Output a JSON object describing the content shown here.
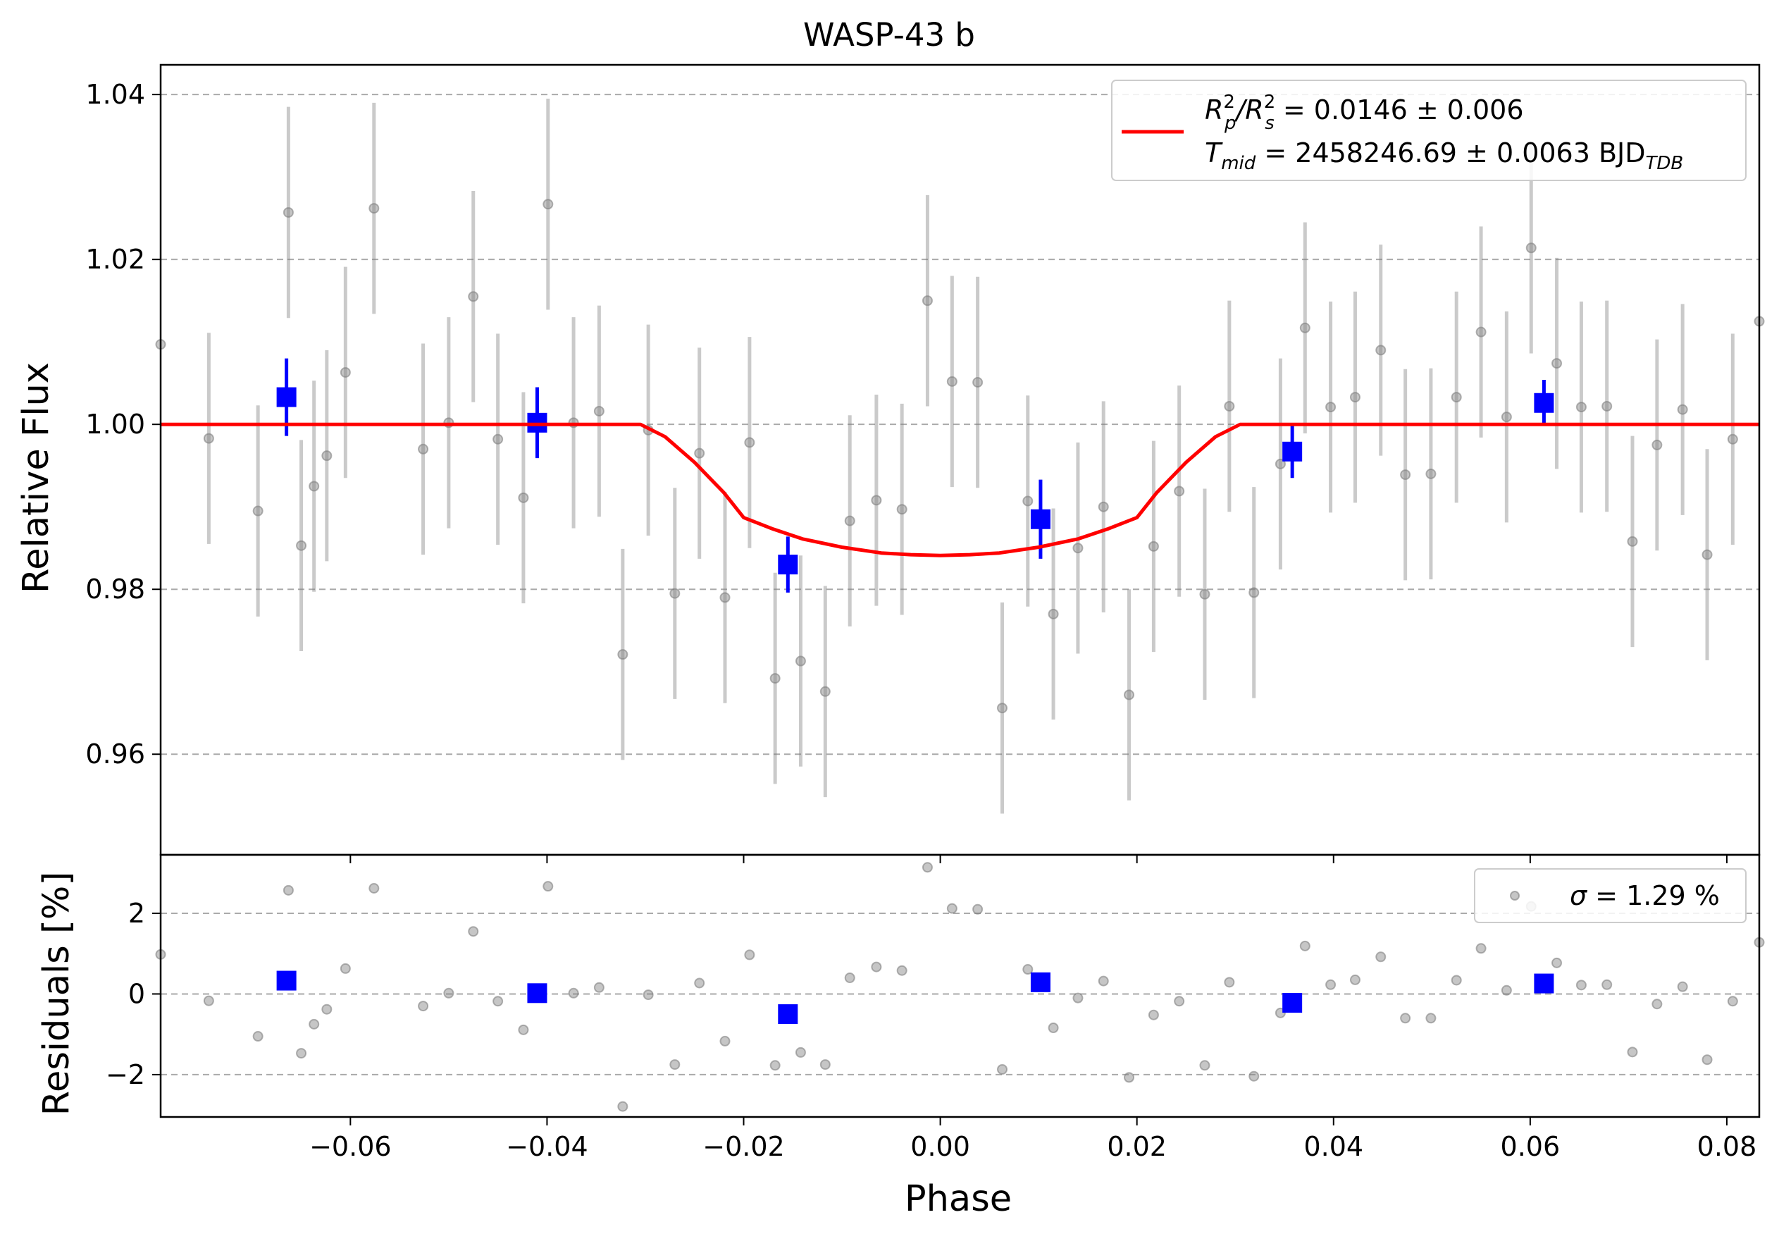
{
  "chart_data": [
    {
      "type": "scatter",
      "title": "WASP-43 b",
      "ylabel": "Relative Flux",
      "xlim": [
        -0.0793,
        0.0833
      ],
      "ylim": [
        0.9478,
        1.0436
      ],
      "grid": "horizontal dashed",
      "xticks": [
        "−0.06",
        "−0.04",
        "−0.02",
        "0.00",
        "0.02",
        "0.04",
        "0.06",
        "0.08"
      ],
      "yticks": [
        "0.96",
        "0.98",
        "1.00",
        "1.02",
        "1.04"
      ],
      "legend": {
        "position": "top-right",
        "line1": {
          "main": "R",
          "sup1": "2",
          "sub1": "p",
          "mid": "/R",
          "sup2": "2",
          "sub2": "s",
          "tail": " = 0.0146 ± 0.006"
        },
        "line2": {
          "main": "T",
          "sub": "mid",
          "tail": " = 2458246.69 ± 0.0063 BJD",
          "sub2": "TDB"
        }
      },
      "series": [
        {
          "kind": "data",
          "color": "#808080",
          "points": [
            [
              -0.0793,
              1.0097,
              0
            ],
            [
              -0.0744,
              0.9983,
              0.0128
            ],
            [
              -0.0694,
              0.9895,
              0.0128
            ],
            [
              -0.0663,
              1.0257,
              0.0128
            ],
            [
              -0.065,
              0.9853,
              0.0128
            ],
            [
              -0.0637,
              0.9925,
              0.0128
            ],
            [
              -0.0624,
              0.9962,
              0.0128
            ],
            [
              -0.0605,
              1.0063,
              0.0128
            ],
            [
              -0.0576,
              1.0262,
              0.0128
            ],
            [
              -0.0526,
              0.997,
              0.0128
            ],
            [
              -0.05,
              1.0002,
              0.0128
            ],
            [
              -0.0475,
              1.0155,
              0.0128
            ],
            [
              -0.045,
              0.9982,
              0.0128
            ],
            [
              -0.0424,
              0.9911,
              0.0128
            ],
            [
              -0.0399,
              1.0267,
              0.0128
            ],
            [
              -0.0373,
              1.0002,
              0.0128
            ],
            [
              -0.0347,
              1.0016,
              0.0128
            ],
            [
              -0.0323,
              0.9721,
              0.0128
            ],
            [
              -0.0297,
              0.9993,
              0.0128
            ],
            [
              -0.027,
              0.9795,
              0.0128
            ],
            [
              -0.0245,
              0.9965,
              0.0128
            ],
            [
              -0.0219,
              0.979,
              0.0128
            ],
            [
              -0.0194,
              0.9978,
              0.0128
            ],
            [
              -0.0168,
              0.9692,
              0.0128
            ],
            [
              -0.0142,
              0.9713,
              0.0128
            ],
            [
              -0.0117,
              0.9676,
              0.0128
            ],
            [
              -0.0092,
              0.9883,
              0.0128
            ],
            [
              -0.0065,
              0.9908,
              0.0128
            ],
            [
              -0.0039,
              0.9897,
              0.0128
            ],
            [
              -0.0013,
              1.015,
              0.0128
            ],
            [
              0.0012,
              1.0052,
              0.0128
            ],
            [
              0.0038,
              1.0051,
              0.0128
            ],
            [
              0.0063,
              0.9656,
              0.0128
            ],
            [
              0.0089,
              0.9907,
              0.0128
            ],
            [
              0.0115,
              0.977,
              0.0128
            ],
            [
              0.014,
              0.985,
              0.0128
            ],
            [
              0.0166,
              0.99,
              0.0128
            ],
            [
              0.0192,
              0.9672,
              0.0128
            ],
            [
              0.0217,
              0.9852,
              0.0128
            ],
            [
              0.0243,
              0.9919,
              0.0128
            ],
            [
              0.0269,
              0.9794,
              0.0128
            ],
            [
              0.0294,
              1.0022,
              0.0128
            ],
            [
              0.0319,
              0.9796,
              0.0128
            ],
            [
              0.0346,
              0.9952,
              0.0128
            ],
            [
              0.0371,
              1.0117,
              0.0128
            ],
            [
              0.0397,
              1.0021,
              0.0128
            ],
            [
              0.0422,
              1.0033,
              0.0128
            ],
            [
              0.0448,
              1.009,
              0.0128
            ],
            [
              0.0473,
              0.9939,
              0.0128
            ],
            [
              0.0499,
              0.994,
              0.0128
            ],
            [
              0.0525,
              1.0033,
              0.0128
            ],
            [
              0.055,
              1.0112,
              0.0128
            ],
            [
              0.0576,
              1.0009,
              0.0128
            ],
            [
              0.0601,
              1.0214,
              0.0128
            ],
            [
              0.0627,
              1.0074,
              0.0128
            ],
            [
              0.0652,
              1.0021,
              0.0128
            ],
            [
              0.0678,
              1.0022,
              0.0128
            ],
            [
              0.0704,
              0.9858,
              0.0128
            ],
            [
              0.0729,
              0.9975,
              0.0128
            ],
            [
              0.0755,
              1.0018,
              0.0128
            ],
            [
              0.078,
              0.9842,
              0.0128
            ],
            [
              0.0806,
              0.9982,
              0.0128
            ],
            [
              0.0833,
              1.0125,
              0
            ]
          ]
        },
        {
          "kind": "binned",
          "color": "#0000ff",
          "points": [
            [
              -0.0665,
              1.0033,
              0.0047
            ],
            [
              -0.041,
              1.0002,
              0.0043
            ],
            [
              -0.0155,
              0.983,
              0.0034
            ],
            [
              0.0102,
              0.9885,
              0.0048
            ],
            [
              0.0358,
              0.9967,
              0.0032
            ],
            [
              0.0614,
              1.0026,
              0.0028
            ]
          ]
        },
        {
          "kind": "model",
          "color": "#ff0000",
          "points": [
            [
              -0.0793,
              1.0
            ],
            [
              -0.0305,
              1.0
            ],
            [
              -0.028,
              0.9985
            ],
            [
              -0.025,
              0.9954
            ],
            [
              -0.022,
              0.9917
            ],
            [
              -0.02,
              0.9887
            ],
            [
              -0.017,
              0.9873
            ],
            [
              -0.014,
              0.9861
            ],
            [
              -0.01,
              0.9851
            ],
            [
              -0.006,
              0.9844
            ],
            [
              -0.003,
              0.9842
            ],
            [
              0.0,
              0.9841
            ],
            [
              0.003,
              0.9842
            ],
            [
              0.006,
              0.9844
            ],
            [
              0.01,
              0.9851
            ],
            [
              0.014,
              0.9861
            ],
            [
              0.017,
              0.9873
            ],
            [
              0.02,
              0.9887
            ],
            [
              0.022,
              0.9917
            ],
            [
              0.025,
              0.9954
            ],
            [
              0.028,
              0.9985
            ],
            [
              0.0305,
              1.0
            ],
            [
              0.0833,
              1.0
            ]
          ]
        }
      ]
    },
    {
      "type": "scatter",
      "xlabel": "Phase",
      "ylabel": "Residuals [%]",
      "xlim": [
        -0.0793,
        0.0833
      ],
      "ylim": [
        -3.05,
        3.45
      ],
      "grid": "horizontal dashed",
      "xticks": [
        "−0.06",
        "−0.04",
        "−0.02",
        "0.00",
        "0.02",
        "0.04",
        "0.06",
        "0.08"
      ],
      "yticks": [
        "−2",
        "0",
        "2"
      ],
      "legend": {
        "position": "top-right",
        "label": " = 1.29 %",
        "symbol": "σ"
      },
      "series": [
        {
          "kind": "data",
          "color": "#808080",
          "points": [
            [
              -0.0793,
              0.98
            ],
            [
              -0.0744,
              -0.17
            ],
            [
              -0.0694,
              -1.05
            ],
            [
              -0.0663,
              2.57
            ],
            [
              -0.065,
              -1.47
            ],
            [
              -0.0637,
              -0.75
            ],
            [
              -0.0624,
              -0.38
            ],
            [
              -0.0605,
              0.63
            ],
            [
              -0.0576,
              2.62
            ],
            [
              -0.0526,
              -0.3
            ],
            [
              -0.05,
              0.02
            ],
            [
              -0.0475,
              1.55
            ],
            [
              -0.045,
              -0.18
            ],
            [
              -0.0424,
              -0.89
            ],
            [
              -0.0399,
              2.67
            ],
            [
              -0.0373,
              0.02
            ],
            [
              -0.0347,
              0.16
            ],
            [
              -0.0323,
              -2.79
            ],
            [
              -0.0297,
              -0.02
            ],
            [
              -0.027,
              -1.75
            ],
            [
              -0.0245,
              0.27
            ],
            [
              -0.0219,
              -1.17
            ],
            [
              -0.0194,
              0.97
            ],
            [
              -0.0168,
              -1.77
            ],
            [
              -0.0142,
              -1.45
            ],
            [
              -0.0117,
              -1.75
            ],
            [
              -0.0092,
              0.4
            ],
            [
              -0.0065,
              0.67
            ],
            [
              -0.0039,
              0.58
            ],
            [
              -0.0013,
              3.14
            ],
            [
              0.0012,
              2.12
            ],
            [
              0.0038,
              2.1
            ],
            [
              0.0063,
              -1.87
            ],
            [
              0.0089,
              0.61
            ],
            [
              0.0115,
              -0.84
            ],
            [
              0.014,
              -0.1
            ],
            [
              0.0166,
              0.32
            ],
            [
              0.0192,
              -2.07
            ],
            [
              0.0217,
              -0.52
            ],
            [
              0.0243,
              -0.18
            ],
            [
              0.0269,
              -1.77
            ],
            [
              0.0294,
              0.29
            ],
            [
              0.0319,
              -2.04
            ],
            [
              0.0346,
              -0.47
            ],
            [
              0.0371,
              1.19
            ],
            [
              0.0397,
              0.23
            ],
            [
              0.0422,
              0.35
            ],
            [
              0.0448,
              0.92
            ],
            [
              0.0473,
              -0.6
            ],
            [
              0.0499,
              -0.6
            ],
            [
              0.0525,
              0.34
            ],
            [
              0.055,
              1.13
            ],
            [
              0.0576,
              0.09
            ],
            [
              0.0601,
              2.17
            ],
            [
              0.0627,
              0.77
            ],
            [
              0.0652,
              0.22
            ],
            [
              0.0678,
              0.23
            ],
            [
              0.0704,
              -1.44
            ],
            [
              0.0729,
              -0.25
            ],
            [
              0.0755,
              0.18
            ],
            [
              0.078,
              -1.63
            ],
            [
              0.0806,
              -0.18
            ],
            [
              0.0833,
              1.28
            ]
          ]
        },
        {
          "kind": "binned",
          "color": "#0000ff",
          "points": [
            [
              -0.0665,
              0.33
            ],
            [
              -0.041,
              0.02
            ],
            [
              -0.0155,
              -0.5
            ],
            [
              0.0102,
              0.29
            ],
            [
              0.0358,
              -0.22
            ],
            [
              0.0614,
              0.26
            ]
          ]
        }
      ]
    }
  ]
}
